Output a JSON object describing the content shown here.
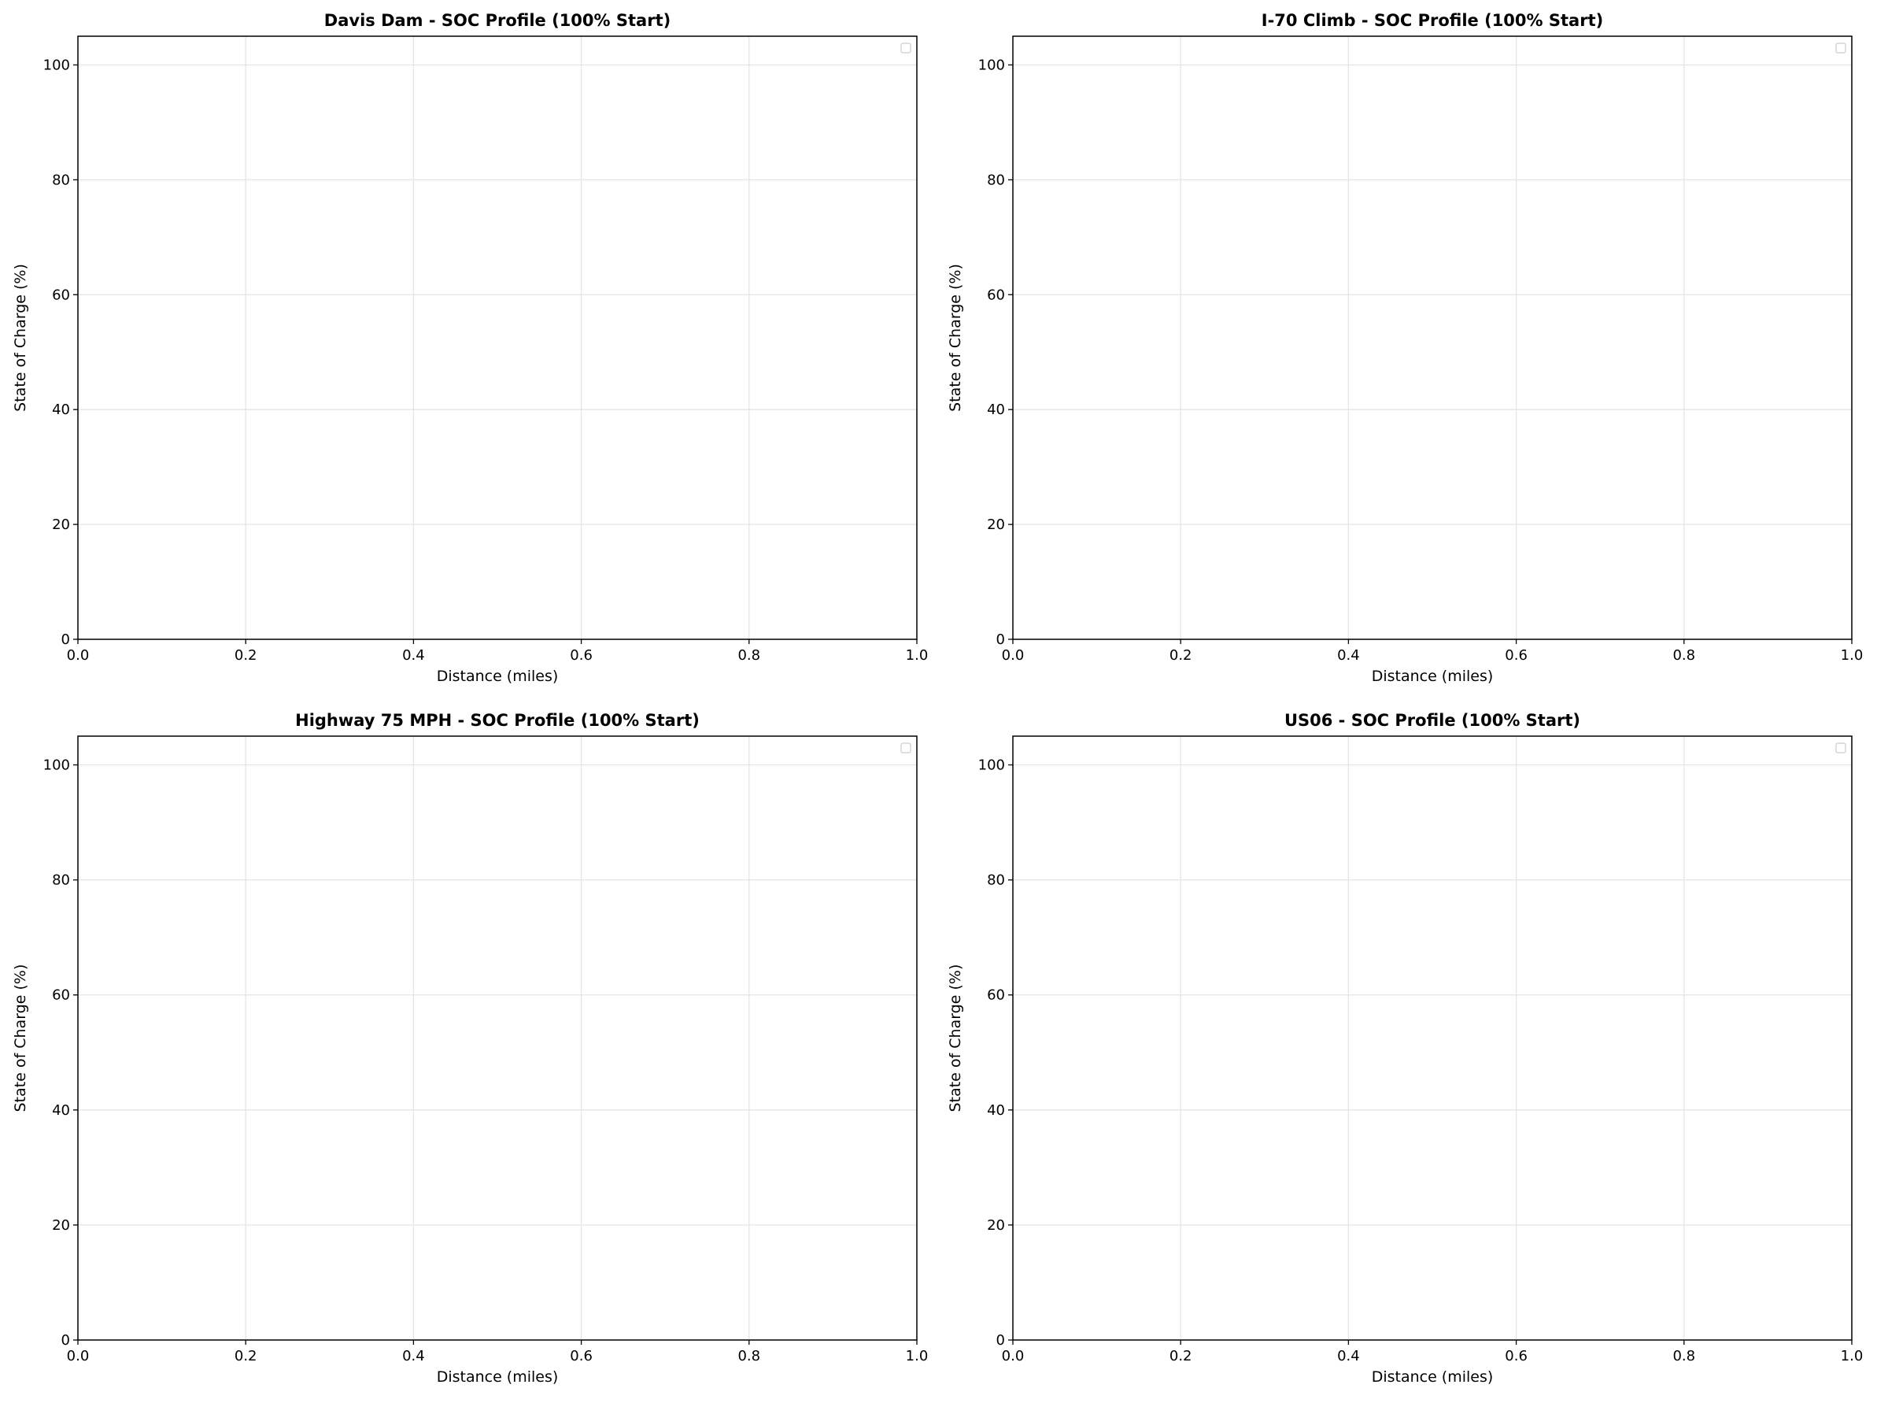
{
  "chart_data": [
    {
      "type": "line",
      "title": "Davis Dam - SOC Profile (100% Start)",
      "x_label": "Distance (miles)",
      "y_label": "State of Charge (%)",
      "series": [],
      "xlim": [
        0,
        1
      ],
      "xticks": [
        {
          "value": 0,
          "label": "0.0"
        },
        0.2,
        0.4,
        0.6,
        0.8,
        {
          "value": 1,
          "label": "1.0"
        }
      ],
      "ylim": [
        0,
        105
      ],
      "yticks": [
        0,
        20,
        40,
        60,
        80,
        100
      ],
      "grid": true,
      "legend": "upper right"
    },
    {
      "type": "line",
      "title": "I-70 Climb - SOC Profile (100% Start)",
      "x_label": "Distance (miles)",
      "y_label": "State of Charge (%)",
      "series": [],
      "xlim": [
        0,
        1
      ],
      "xticks": [
        {
          "value": 0,
          "label": "0.0"
        },
        0.2,
        0.4,
        0.6,
        0.8,
        {
          "value": 1,
          "label": "1.0"
        }
      ],
      "ylim": [
        0,
        105
      ],
      "yticks": [
        0,
        20,
        40,
        60,
        80,
        100
      ],
      "grid": true,
      "legend": "upper right"
    },
    {
      "type": "line",
      "title": "Highway 75 MPH - SOC Profile (100% Start)",
      "x_label": "Distance (miles)",
      "y_label": "State of Charge (%)",
      "series": [],
      "xlim": [
        0,
        1
      ],
      "xticks": [
        {
          "value": 0,
          "label": "0.0"
        },
        0.2,
        0.4,
        0.6,
        0.8,
        {
          "value": 1,
          "label": "1.0"
        }
      ],
      "ylim": [
        0,
        105
      ],
      "yticks": [
        0,
        20,
        40,
        60,
        80,
        100
      ],
      "grid": true,
      "legend": "upper right"
    },
    {
      "type": "line",
      "title": "US06 - SOC Profile (100% Start)",
      "x_label": "Distance (miles)",
      "y_label": "State of Charge (%)",
      "series": [],
      "xlim": [
        0,
        1
      ],
      "xticks": [
        {
          "value": 0,
          "label": "0.0"
        },
        0.2,
        0.4,
        0.6,
        0.8,
        {
          "value": 1,
          "label": "1.0"
        }
      ],
      "ylim": [
        0,
        105
      ],
      "yticks": [
        0,
        20,
        40,
        60,
        80,
        100
      ],
      "grid": true,
      "legend": "upper right"
    }
  ]
}
